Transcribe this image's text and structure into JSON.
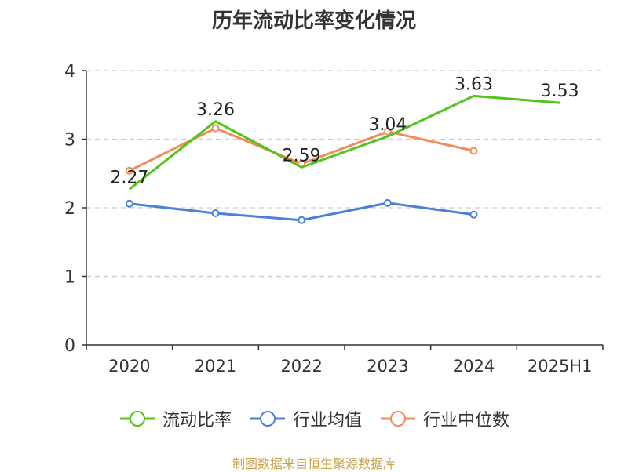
{
  "chart_data": {
    "type": "line",
    "title": "历年流动比率变化情况",
    "categories": [
      "2020",
      "2021",
      "2022",
      "2023",
      "2024",
      "2025H1"
    ],
    "ylim": [
      0,
      4
    ],
    "yticks": [
      "0",
      "1",
      "2",
      "3",
      "4"
    ],
    "grid": true,
    "legend_position": "bottom",
    "series": [
      {
        "name": "流动比率",
        "color": "#52c41a",
        "values": [
          2.27,
          3.26,
          2.59,
          3.04,
          3.63,
          3.53
        ],
        "labels": [
          "2.27",
          "3.26",
          "2.59",
          "3.04",
          "3.63",
          "3.53"
        ],
        "show_markers": false
      },
      {
        "name": "行业均值",
        "color": "#4a7fdb",
        "values": [
          2.06,
          1.92,
          1.82,
          2.07,
          1.9,
          null
        ],
        "show_markers": true
      },
      {
        "name": "行业中位数",
        "color": "#f28c5a",
        "values": [
          2.54,
          3.16,
          2.64,
          3.11,
          2.83,
          null
        ],
        "show_markers": true
      }
    ],
    "source": "制图数据来自恒生聚源数据库"
  }
}
